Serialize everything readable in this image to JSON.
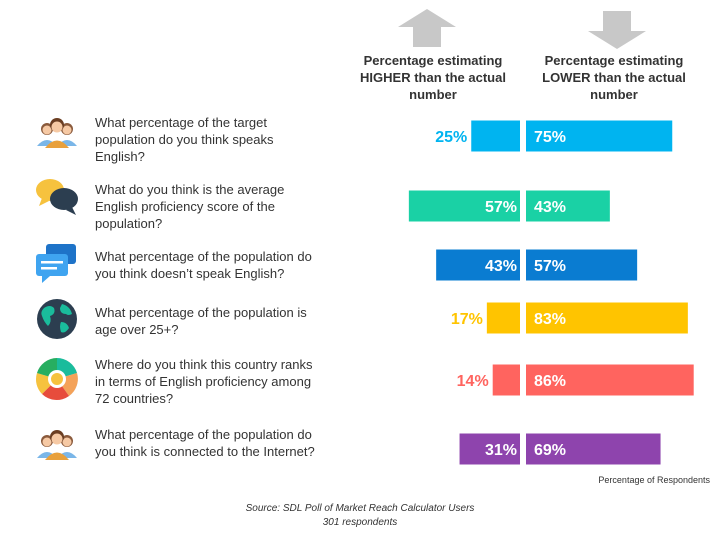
{
  "header": {
    "higher": "Percentage estimating HIGHER than the actual number",
    "lower": "Percentage estimating LOWER than the actual number"
  },
  "chart_data": {
    "type": "bar",
    "orientation": "horizontal-diverging",
    "categories": [
      "What percentage of the target population do you think speaks English?",
      "What do you think is the average English proficiency score of the population?",
      "What percentage of the  population do you think doesn’t speak English?",
      "What percentage of the population is age over 25+?",
      "Where do you think this country ranks in terms of English proficiency among 72 countries?",
      "What percentage of the population do you think is connected to the Internet?"
    ],
    "series": [
      {
        "name": "Percentage estimating HIGHER than the actual number",
        "values": [
          25,
          57,
          43,
          17,
          14,
          31
        ],
        "labels": [
          "25%",
          "57%",
          "43%",
          "17%",
          "14%",
          "31%"
        ]
      },
      {
        "name": "Percentage estimating LOWER than the actual number",
        "values": [
          75,
          43,
          57,
          83,
          86,
          69
        ],
        "labels": [
          "75%",
          "43%",
          "57%",
          "83%",
          "86%",
          "69%"
        ]
      }
    ],
    "colors": [
      "#00b4f0",
      "#1ad1a5",
      "#0a7cd1",
      "#ffc400",
      "#ff645f",
      "#8e44ad"
    ],
    "xlabel": "Percentage of Respondents",
    "xlim": [
      0,
      100
    ]
  },
  "icons": [
    "people-icon",
    "speech-bubbles-icon",
    "chat-message-icon",
    "globe-icon",
    "ranking-wheel-icon",
    "people-icon"
  ],
  "source": {
    "line1": "Source: SDL Poll of Market Reach Calculator Users",
    "line2": "301 respondents"
  }
}
